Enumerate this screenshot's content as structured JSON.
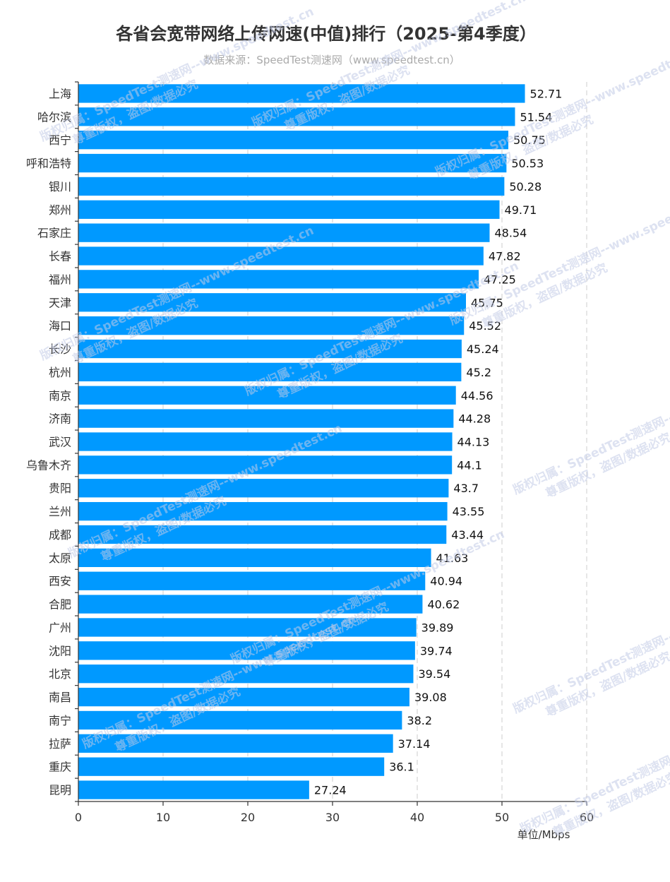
{
  "chart_data": {
    "type": "bar",
    "orientation": "horizontal",
    "title": "各省会宽带网络上传网速(中值)排行（2025-第4季度）",
    "subtitle": "数据来源：SpeedTest测速网（www.speedtest.cn）",
    "unit_label": "单位/Mbps",
    "xlim": [
      0,
      60
    ],
    "x_ticks": [
      0,
      10,
      20,
      30,
      40,
      50,
      60
    ],
    "grid": "vertical dashed",
    "bar_color": "#0099ff",
    "categories": [
      "上海",
      "哈尔滨",
      "西宁",
      "呼和浩特",
      "银川",
      "郑州",
      "石家庄",
      "长春",
      "福州",
      "天津",
      "海口",
      "长沙",
      "杭州",
      "南京",
      "济南",
      "武汉",
      "乌鲁木齐",
      "贵阳",
      "兰州",
      "成都",
      "太原",
      "西安",
      "合肥",
      "广州",
      "沈阳",
      "北京",
      "南昌",
      "南宁",
      "拉萨",
      "重庆",
      "昆明"
    ],
    "values": [
      52.71,
      51.54,
      50.75,
      50.53,
      50.28,
      49.71,
      48.54,
      47.82,
      47.25,
      45.75,
      45.52,
      45.24,
      45.2,
      44.56,
      44.28,
      44.13,
      44.1,
      43.7,
      43.55,
      43.44,
      41.63,
      40.94,
      40.62,
      39.89,
      39.74,
      39.54,
      39.08,
      38.2,
      37.14,
      36.1,
      27.24
    ],
    "value_labels": [
      "52.71",
      "51.54",
      "50.75",
      "50.53",
      "50.28",
      "49.71",
      "48.54",
      "47.82",
      "47.25",
      "45.75",
      "45.52",
      "45.24",
      "45.2",
      "44.56",
      "44.28",
      "44.13",
      "44.1",
      "43.7",
      "43.55",
      "43.44",
      "41.63",
      "40.94",
      "40.62",
      "39.89",
      "39.74",
      "39.54",
      "39.08",
      "38.2",
      "37.14",
      "36.1",
      "27.24"
    ]
  },
  "watermark": {
    "line1": "版权归属：SpeedTest测速网--www.speedtest.cn",
    "line2": "尊重版权，盗图/数据必究"
  }
}
